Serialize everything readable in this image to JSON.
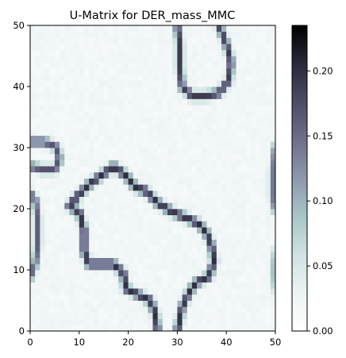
{
  "chart_data": {
    "type": "heatmap",
    "title": "U-Matrix for DER_mass_MMC",
    "xlabel": "",
    "ylabel": "",
    "grid_size": [
      50,
      50
    ],
    "xlim": [
      0,
      50
    ],
    "ylim": [
      0,
      50
    ],
    "x_ticks": [
      "0",
      "10",
      "20",
      "30",
      "40",
      "50"
    ],
    "y_ticks": [
      "0",
      "10",
      "20",
      "30",
      "40",
      "50"
    ],
    "colormap": "bone_r",
    "colorbar": {
      "vmin": 0.0,
      "vmax": 0.235,
      "ticks": [
        "0.00",
        "0.05",
        "0.10",
        "0.15",
        "0.20"
      ],
      "tick_values": [
        0.0,
        0.05,
        0.1,
        0.15,
        0.2
      ]
    },
    "background_level": 0.015,
    "noise_level": 0.012,
    "boundaries": [
      {
        "name": "top-loop",
        "value": 0.19,
        "points": [
          [
            30,
            50
          ],
          [
            30.5,
            47
          ],
          [
            30.5,
            43
          ],
          [
            31,
            40
          ],
          [
            33,
            38.5
          ],
          [
            36,
            38.5
          ],
          [
            38.5,
            39
          ],
          [
            40.5,
            41
          ],
          [
            41,
            44
          ],
          [
            40,
            47
          ],
          [
            38.5,
            50
          ]
        ]
      },
      {
        "name": "left-lobe",
        "value": 0.17,
        "points": [
          [
            0,
            31
          ],
          [
            3,
            31
          ],
          [
            5.5,
            30
          ],
          [
            6,
            28
          ],
          [
            5,
            26.5
          ],
          [
            2.5,
            26.5
          ],
          [
            0,
            27
          ]
        ]
      },
      {
        "name": "left-edge",
        "value": 0.16,
        "points": [
          [
            0,
            22.5
          ],
          [
            1,
            21.5
          ],
          [
            1.5,
            18.5
          ],
          [
            1.5,
            14
          ],
          [
            1,
            11
          ],
          [
            0,
            9
          ]
        ]
      },
      {
        "name": "center-blob",
        "value": 0.2,
        "points": [
          [
            26,
            0
          ],
          [
            25.5,
            3
          ],
          [
            24.5,
            5
          ],
          [
            22,
            6
          ],
          [
            19.5,
            7
          ],
          [
            19,
            9.5
          ],
          [
            17,
            11
          ],
          [
            15,
            11
          ],
          [
            12,
            11
          ],
          [
            11,
            13
          ],
          [
            11,
            16.5
          ],
          [
            10,
            19.5
          ],
          [
            8,
            20.5
          ],
          [
            9.5,
            22
          ],
          [
            12,
            24
          ],
          [
            14.5,
            25.5
          ],
          [
            17,
            27
          ],
          [
            19.5,
            25.5
          ],
          [
            21.5,
            23.5
          ],
          [
            23.5,
            23
          ],
          [
            26,
            21
          ],
          [
            29,
            19.5
          ],
          [
            32,
            18.5
          ],
          [
            34.5,
            17.5
          ],
          [
            36,
            16
          ],
          [
            37,
            14
          ],
          [
            37.5,
            11.5
          ],
          [
            36.5,
            9
          ],
          [
            34,
            8
          ],
          [
            32.5,
            6.5
          ],
          [
            31,
            4
          ],
          [
            30.5,
            2
          ],
          [
            30,
            0
          ]
        ]
      },
      {
        "name": "right-edge",
        "value": 0.14,
        "points": [
          [
            50,
            30
          ],
          [
            49.5,
            26
          ],
          [
            49.5,
            22
          ],
          [
            50,
            20
          ]
        ]
      },
      {
        "name": "right-lower-edge",
        "value": 0.09,
        "points": [
          [
            50,
            13
          ],
          [
            49.5,
            10
          ],
          [
            50,
            7
          ]
        ]
      }
    ]
  }
}
